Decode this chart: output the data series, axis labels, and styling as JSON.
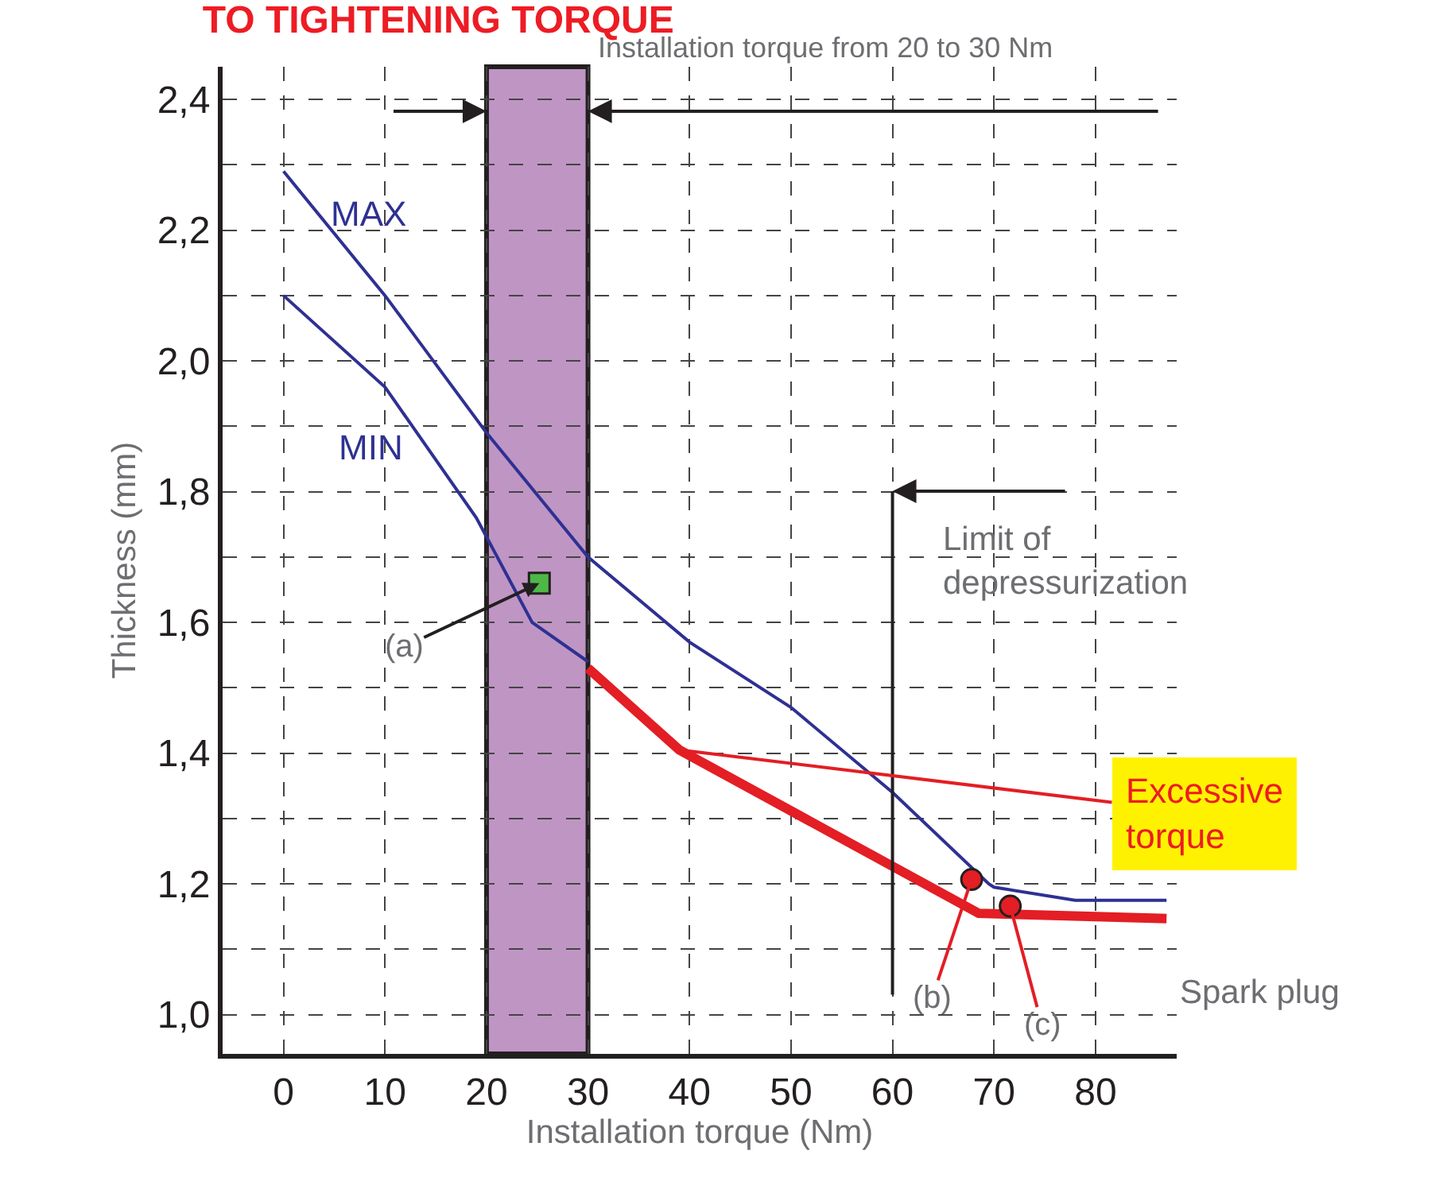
{
  "chart_data": {
    "type": "line",
    "title": "TO TIGHTENING TORQUE",
    "xlabel": "Installation torque (Nm)",
    "ylabel": "Thickness (mm)",
    "xlim": [
      -6,
      88
    ],
    "ylim": [
      0.94,
      2.45
    ],
    "xticks": [
      0,
      10,
      20,
      30,
      40,
      50,
      60,
      70,
      80
    ],
    "yticks": [
      {
        "value": 1.0,
        "label": "1,0"
      },
      {
        "value": 1.1,
        "label": null
      },
      {
        "value": 1.2,
        "label": "1,2"
      },
      {
        "value": 1.3,
        "label": null
      },
      {
        "value": 1.4,
        "label": "1,4"
      },
      {
        "value": 1.5,
        "label": null
      },
      {
        "value": 1.6,
        "label": "1,6"
      },
      {
        "value": 1.7,
        "label": null
      },
      {
        "value": 1.8,
        "label": "1,8"
      },
      {
        "value": 1.9,
        "label": null
      },
      {
        "value": 2.0,
        "label": "2,0"
      },
      {
        "value": 2.1,
        "label": null
      },
      {
        "value": 2.2,
        "label": "2,2"
      },
      {
        "value": 2.3,
        "label": null
      },
      {
        "value": 2.4,
        "label": "2,4"
      }
    ],
    "grid": true,
    "legend": false,
    "marker": "none",
    "line_style": "solid",
    "series": [
      {
        "name": "MAX",
        "color": "#2e3192",
        "x": [
          0,
          10,
          20,
          30,
          40,
          50,
          60,
          69.5,
          70,
          78,
          87
        ],
        "values": [
          2.29,
          2.1,
          1.89,
          1.7,
          1.57,
          1.47,
          1.34,
          1.2,
          1.195,
          1.175,
          1.175
        ]
      },
      {
        "name": "MIN",
        "color": "#2e3192",
        "x": [
          0,
          10,
          19,
          24.5,
          30
        ],
        "values": [
          2.1,
          1.96,
          1.76,
          1.6,
          1.54
        ]
      },
      {
        "color": "#e31e24",
        "x": [
          30,
          39,
          68.5,
          87
        ],
        "values": [
          1.53,
          1.405,
          1.155,
          1.147
        ]
      },
      {
        "type": "scatter",
        "marker": "circle",
        "color": "#e31e24",
        "x": [
          67.8,
          71.6
        ],
        "values": [
          1.207,
          1.166
        ]
      },
      {
        "type": "scatter",
        "marker": "square",
        "color": "#4db848",
        "x": [
          25.2
        ],
        "values": [
          1.66
        ]
      }
    ],
    "bands": [
      {
        "axis": "x",
        "from": 20,
        "to": 30,
        "label": "Installation torque from 20 to 30 Nm",
        "color": "#bf95c4"
      }
    ],
    "ref_lines": [
      {
        "axis": "x",
        "value": 60,
        "label": "Limit of depressurization",
        "color": "#231f20"
      }
    ],
    "annotations": [
      {
        "text": "(a)",
        "x": 25.2,
        "y": 1.66
      },
      {
        "text": "(b)",
        "x": 67.8,
        "y": 1.207
      },
      {
        "text": "(c)",
        "x": 71.6,
        "y": 1.166
      },
      {
        "text": "Excessive torque",
        "x": 39,
        "y": 1.405
      },
      "Spark plug"
    ]
  }
}
